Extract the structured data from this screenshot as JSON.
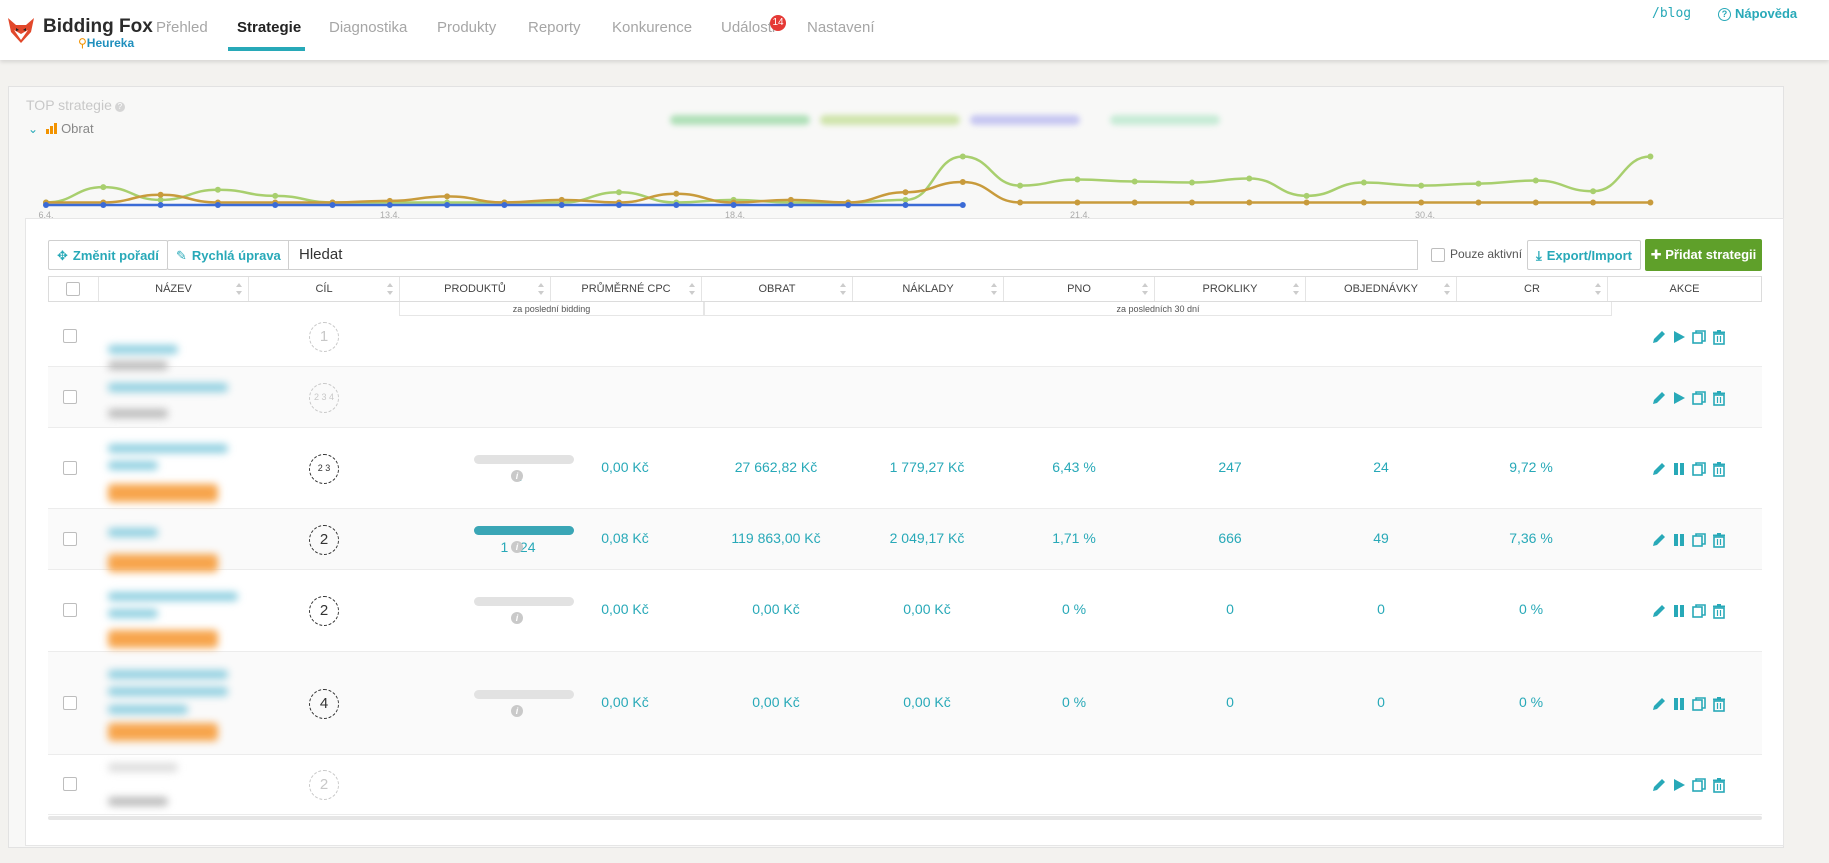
{
  "app": {
    "name": "Bidding Fox",
    "sub": "Heureka"
  },
  "nav": [
    {
      "label": "Přehled",
      "active": false
    },
    {
      "label": "Strategie",
      "active": true
    },
    {
      "label": "Diagnostika",
      "active": false
    },
    {
      "label": "Produkty",
      "active": false
    },
    {
      "label": "Reporty",
      "active": false
    },
    {
      "label": "Konkurence",
      "active": false
    },
    {
      "label": "Události",
      "active": false,
      "badge": "14"
    },
    {
      "label": "Nastavení",
      "active": false
    }
  ],
  "header_links": {
    "blog": "/blog",
    "help": "Nápověda"
  },
  "top_strategies": {
    "title": "TOP strategie",
    "metric": "Obrat"
  },
  "chart_data": {
    "type": "line",
    "xticks": [
      "6.4.",
      "13.4.",
      "18.4.",
      "21.4.",
      "30.4."
    ],
    "series": [
      {
        "color": "#a8cf6e",
        "values": [
          0.05,
          0.35,
          0.1,
          0.3,
          0.18,
          0.05,
          0.05,
          0.05,
          0.05,
          0.05,
          0.25,
          0.05,
          0.1,
          0.05,
          0.05,
          0.1,
          0.95,
          0.38,
          0.5,
          0.46,
          0.44,
          0.52,
          0.18,
          0.44,
          0.38,
          0.42,
          0.48,
          0.27,
          0.95
        ]
      },
      {
        "color": "#c89b3c",
        "values": [
          0.05,
          0.05,
          0.2,
          0.05,
          0.05,
          0.05,
          0.08,
          0.17,
          0.05,
          0.1,
          0.05,
          0.22,
          0.05,
          0.1,
          0.05,
          0.25,
          0.45,
          0.05,
          0.05,
          0.05,
          0.05,
          0.05,
          0.05,
          0.05,
          0.05,
          0.05,
          0.05,
          0.05,
          0.05
        ]
      },
      {
        "color": "#3b6bd6",
        "values": [
          0.0,
          0.0,
          0.0,
          0.0,
          0.0,
          0.0,
          0.0,
          0.0,
          0.0,
          0.0,
          0.0,
          0.0,
          0.0,
          0.0,
          0.0,
          0.0,
          0.0
        ]
      }
    ]
  },
  "toolbar": {
    "reorder": "Změnit pořadí",
    "quick_edit": "Rychlá úprava",
    "search_placeholder": "Hledat",
    "only_active": "Pouze aktivní",
    "export": "Export/Import",
    "add": "Přidat strategii"
  },
  "columns": [
    "NÁZEV",
    "CÍL",
    "PRODUKTŮ",
    "PRŮMĚRNÉ CPC",
    "OBRAT",
    "NÁKLADY",
    "PNO",
    "PROKLIKY",
    "OBJEDNÁVKY",
    "CR",
    "AKCE"
  ],
  "subheaders": {
    "last_bidding": "za poslední bidding",
    "last_30": "za posledních 30 dní"
  },
  "rows": [
    {
      "goal": "1",
      "dim": true,
      "active": false
    },
    {
      "goal": "2 3 4",
      "dim": true,
      "active": false,
      "small": true
    },
    {
      "goal": "2 3",
      "dim": false,
      "active": true,
      "small": true,
      "products": "1",
      "fill": 0.0,
      "cpc": "0,00 Kč",
      "obrat": "27 662,82 Kč",
      "naklady": "1 779,27 Kč",
      "pno": "6,43 %",
      "prokliky": "247",
      "objednavky": "24",
      "cr": "9,72 %"
    },
    {
      "goal": "2",
      "dim": false,
      "active": true,
      "products": "1 524",
      "fill": 1.0,
      "cpc": "0,08 Kč",
      "obrat": "119 863,00 Kč",
      "naklady": "2 049,17 Kč",
      "pno": "1,71 %",
      "prokliky": "666",
      "objednavky": "49",
      "cr": "7,36 %"
    },
    {
      "goal": "2",
      "dim": false,
      "active": true,
      "products": "0",
      "fill": 0.0,
      "cpc": "0,00 Kč",
      "obrat": "0,00 Kč",
      "naklady": "0,00 Kč",
      "pno": "0 %",
      "prokliky": "0",
      "objednavky": "0",
      "cr": "0 %"
    },
    {
      "goal": "4",
      "dim": false,
      "active": true,
      "products": "0",
      "fill": 0.0,
      "cpc": "0,00 Kč",
      "obrat": "0,00 Kč",
      "naklady": "0,00 Kč",
      "pno": "0 %",
      "prokliky": "0",
      "objednavky": "0",
      "cr": "0 %"
    },
    {
      "goal": "2",
      "dim": true,
      "active": false
    }
  ]
}
